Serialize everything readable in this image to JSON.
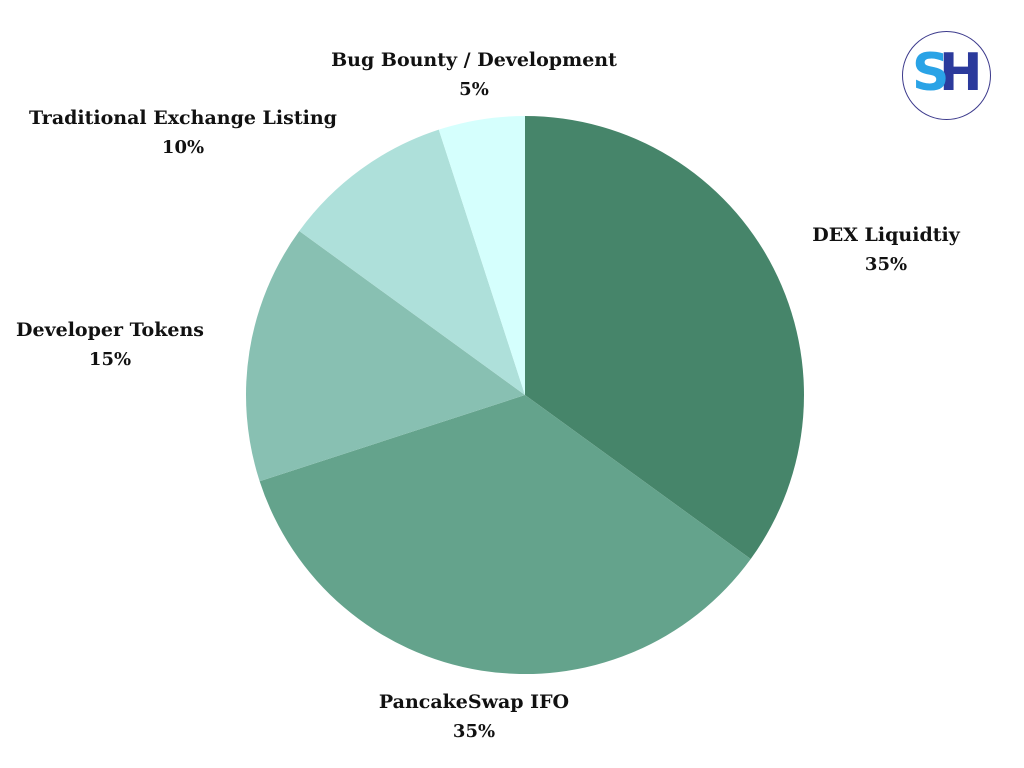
{
  "chart_data": {
    "type": "pie",
    "title": "",
    "start_angle_deg": 0,
    "direction": "clockwise",
    "slices": [
      {
        "label": "DEX Liquidtiy",
        "value": 35,
        "value_label": "35%",
        "color": "#46856a"
      },
      {
        "label": "PancakeSwap IFO",
        "value": 35,
        "value_label": "35%",
        "color": "#64a38c"
      },
      {
        "label": "Developer Tokens",
        "value": 15,
        "value_label": "15%",
        "color": "#88c0b2"
      },
      {
        "label": "Traditional Exchange Listing",
        "value": 10,
        "value_label": "10%",
        "color": "#aee0da"
      },
      {
        "label": "Bug Bounty / Development",
        "value": 5,
        "value_label": "5%",
        "color": "#d5fffd"
      }
    ],
    "legend": "none"
  },
  "logo": {
    "letters": [
      "S",
      "H"
    ],
    "colors": {
      "S": "#2aa3e6",
      "H": "#2b3a9c",
      "ring": "#3c3a8c"
    }
  }
}
